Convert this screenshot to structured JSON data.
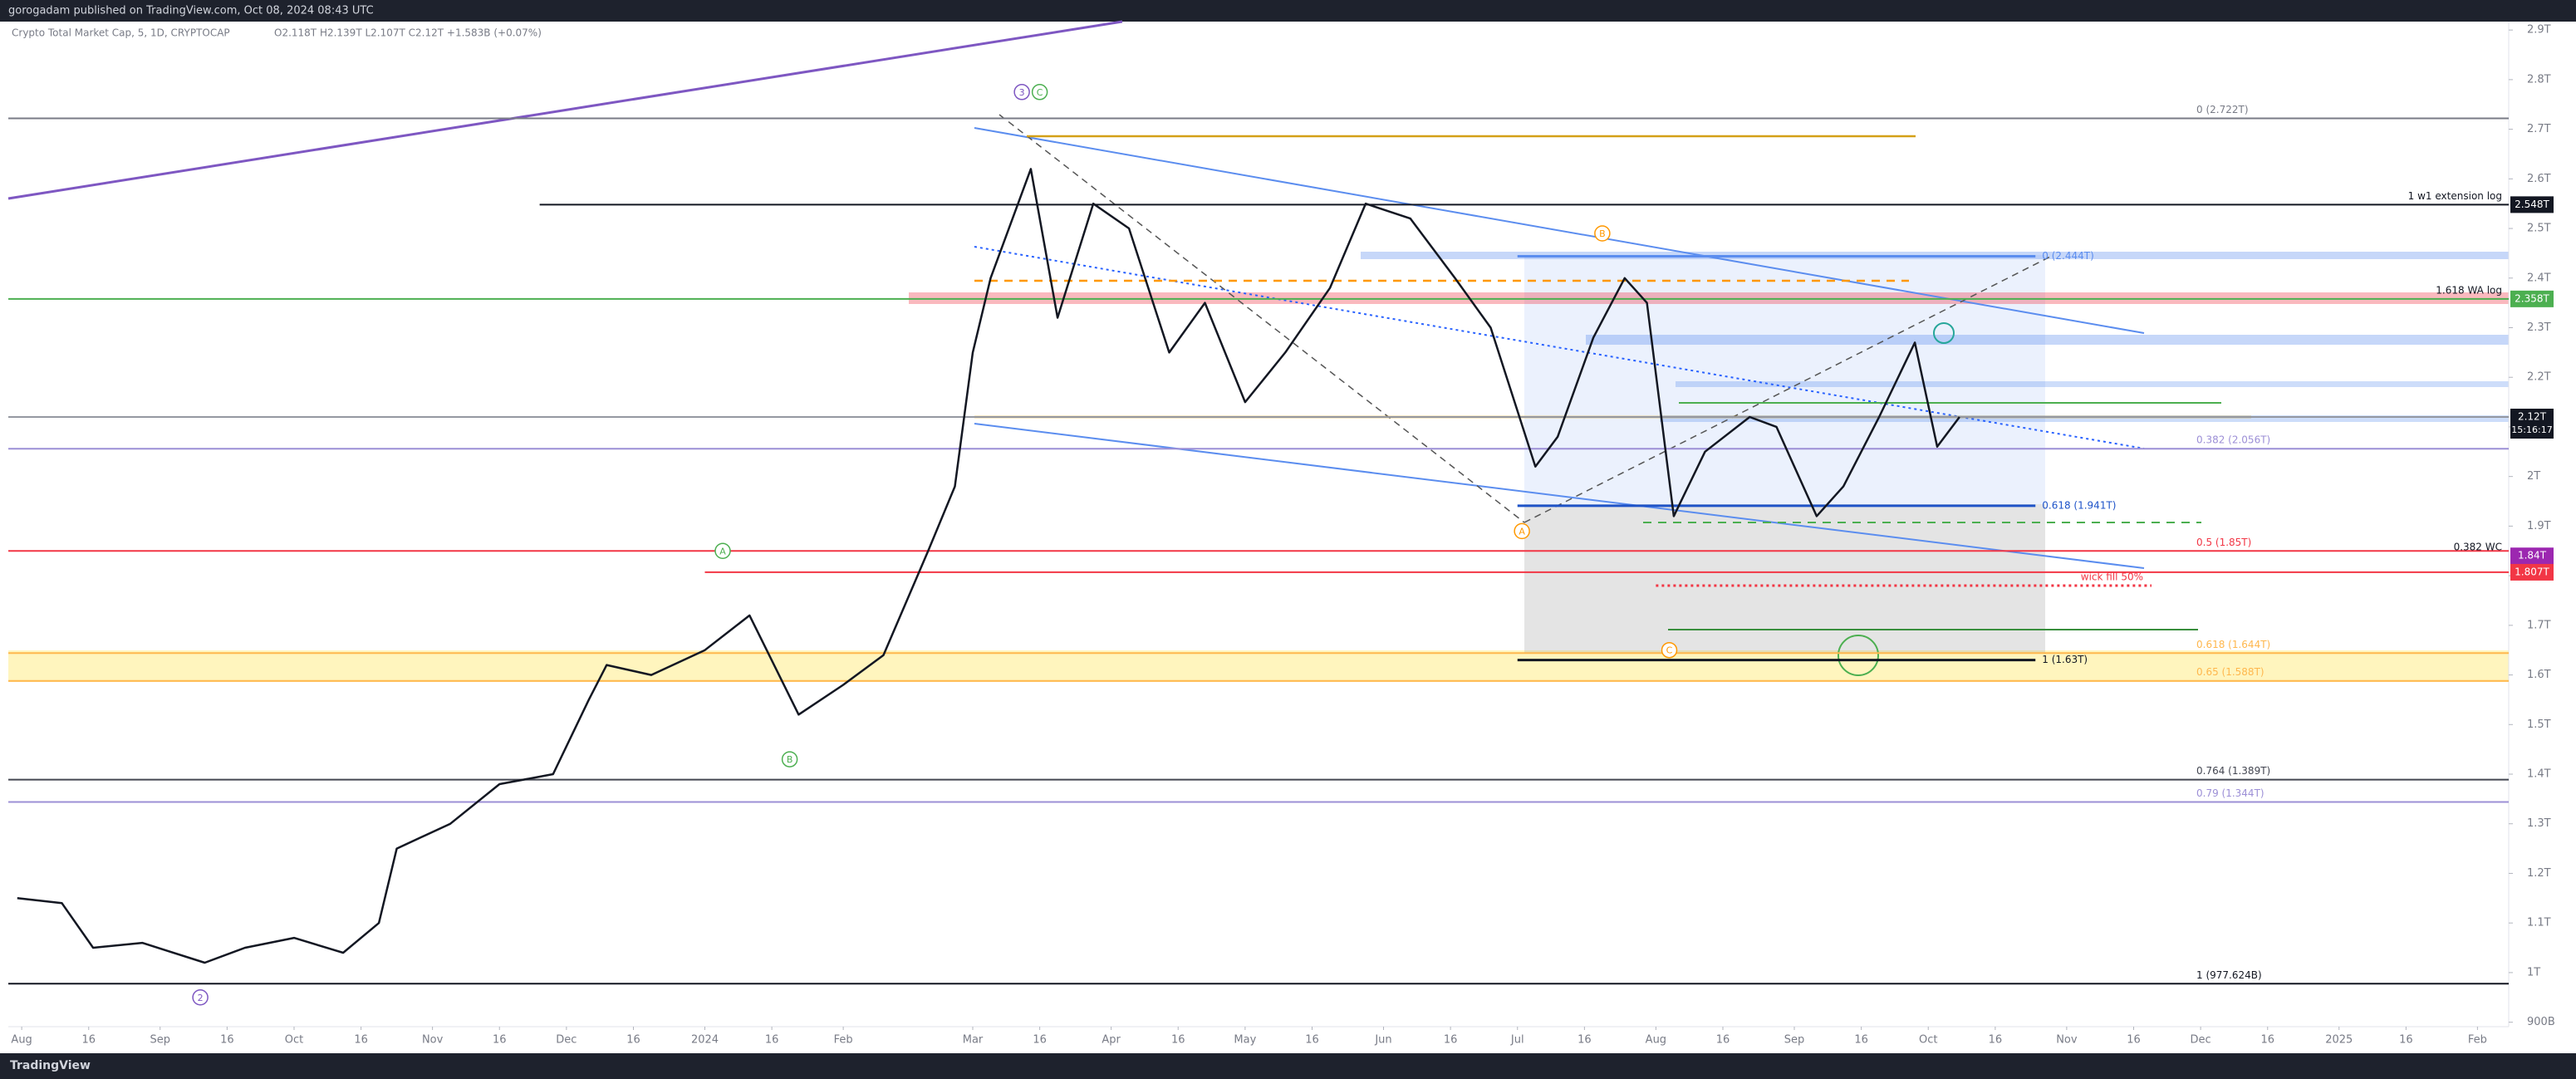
{
  "header": {
    "publisher": "gorogadam published on TradingView.com, Oct 08, 2024 08:43 UTC",
    "footer": "TradingView"
  },
  "chart_data": {
    "type": "line",
    "title": "Crypto Total Market Cap, 5, 1D, CRYPTOCAP",
    "quote": "O2.118T H2.139T L2.107T C2.12T +1.583B (+0.07%)",
    "color": "#131722",
    "x": [
      "2023-07-31",
      "2023-08-10",
      "2023-08-17",
      "2023-08-28",
      "2023-09-11",
      "2023-09-20",
      "2023-10-01",
      "2023-10-12",
      "2023-10-20",
      "2023-10-24",
      "2023-11-05",
      "2023-11-16",
      "2023-11-28",
      "2023-12-06",
      "2023-12-10",
      "2023-12-20",
      "2024-01-01",
      "2024-01-11",
      "2024-01-22",
      "2024-02-01",
      "2024-02-10",
      "2024-02-20",
      "2024-02-26",
      "2024-03-01",
      "2024-03-05",
      "2024-03-14",
      "2024-03-20",
      "2024-03-28",
      "2024-04-05",
      "2024-04-14",
      "2024-04-22",
      "2024-05-01",
      "2024-05-10",
      "2024-05-20",
      "2024-05-28",
      "2024-06-07",
      "2024-06-17",
      "2024-06-25",
      "2024-07-05",
      "2024-07-10",
      "2024-07-18",
      "2024-07-25",
      "2024-07-30",
      "2024-08-05",
      "2024-08-12",
      "2024-08-22",
      "2024-08-28",
      "2024-09-06",
      "2024-09-12",
      "2024-09-20",
      "2024-09-28",
      "2024-10-03",
      "2024-10-08"
    ],
    "values": [
      1.15,
      1.14,
      1.05,
      1.06,
      1.02,
      1.05,
      1.07,
      1.04,
      1.1,
      1.25,
      1.3,
      1.38,
      1.4,
      1.55,
      1.62,
      1.6,
      1.65,
      1.72,
      1.52,
      1.58,
      1.64,
      1.85,
      1.98,
      2.25,
      2.4,
      2.62,
      2.32,
      2.55,
      2.5,
      2.25,
      2.35,
      2.15,
      2.25,
      2.38,
      2.55,
      2.52,
      2.4,
      2.3,
      2.02,
      2.08,
      2.28,
      2.4,
      2.35,
      1.92,
      2.05,
      2.12,
      2.1,
      1.92,
      1.98,
      2.12,
      2.27,
      2.06,
      2.12
    ],
    "xlim": [
      "2023-07-29",
      "2025-02-08"
    ],
    "ylim": [
      0.891,
      2.917
    ],
    "xticks": [
      {
        "value": "2023-08-01",
        "label": "Aug"
      },
      {
        "value": "2023-08-16",
        "label": "16"
      },
      {
        "value": "2023-09-01",
        "label": "Sep"
      },
      {
        "value": "2023-09-16",
        "label": "16"
      },
      {
        "value": "2023-10-01",
        "label": "Oct"
      },
      {
        "value": "2023-10-16",
        "label": "16"
      },
      {
        "value": "2023-11-01",
        "label": "Nov"
      },
      {
        "value": "2023-11-16",
        "label": "16"
      },
      {
        "value": "2023-12-01",
        "label": "Dec"
      },
      {
        "value": "2023-12-16",
        "label": "16"
      },
      {
        "value": "2024-01-01",
        "label": "2024"
      },
      {
        "value": "2024-01-16",
        "label": "16"
      },
      {
        "value": "2024-02-01",
        "label": "Feb"
      },
      {
        "value": "2024-03-01",
        "label": "Mar"
      },
      {
        "value": "2024-03-16",
        "label": "16"
      },
      {
        "value": "2024-04-01",
        "label": "Apr"
      },
      {
        "value": "2024-04-16",
        "label": "16"
      },
      {
        "value": "2024-05-01",
        "label": "May"
      },
      {
        "value": "2024-05-16",
        "label": "16"
      },
      {
        "value": "2024-06-01",
        "label": "Jun"
      },
      {
        "value": "2024-06-16",
        "label": "16"
      },
      {
        "value": "2024-07-01",
        "label": "Jul"
      },
      {
        "value": "2024-07-16",
        "label": "16"
      },
      {
        "value": "2024-08-01",
        "label": "Aug"
      },
      {
        "value": "2024-08-16",
        "label": "16"
      },
      {
        "value": "2024-09-01",
        "label": "Sep"
      },
      {
        "value": "2024-09-16",
        "label": "16"
      },
      {
        "value": "2024-10-01",
        "label": "Oct"
      },
      {
        "value": "2024-10-16",
        "label": "16"
      },
      {
        "value": "2024-11-01",
        "label": "Nov"
      },
      {
        "value": "2024-11-16",
        "label": "16"
      },
      {
        "value": "2024-12-01",
        "label": "Dec"
      },
      {
        "value": "2024-12-16",
        "label": "16"
      },
      {
        "value": "2025-01-01",
        "label": "2025"
      },
      {
        "value": "2025-01-16",
        "label": "16"
      },
      {
        "value": "2025-02-01",
        "label": "Feb"
      }
    ],
    "yticks": [
      {
        "value": 2.9,
        "label": "2.9T"
      },
      {
        "value": 2.8,
        "label": "2.8T"
      },
      {
        "value": 2.7,
        "label": "2.7T"
      },
      {
        "value": 2.6,
        "label": "2.6T"
      },
      {
        "value": 2.5,
        "label": "2.5T"
      },
      {
        "value": 2.4,
        "label": "2.4T"
      },
      {
        "value": 2.3,
        "label": "2.3T"
      },
      {
        "value": 2.2,
        "label": "2.2T"
      },
      {
        "value": 2.1,
        "label": "2.1T"
      },
      {
        "value": 2,
        "label": "2T"
      },
      {
        "value": 1.9,
        "label": "1.9T"
      },
      {
        "value": 1.8,
        "label": "1.8T"
      },
      {
        "value": 1.7,
        "label": "1.7T"
      },
      {
        "value": 1.6,
        "label": "1.6T"
      },
      {
        "value": 1.5,
        "label": "1.5T"
      },
      {
        "value": 1.4,
        "label": "1.4T"
      },
      {
        "value": 1.3,
        "label": "1.3T"
      },
      {
        "value": 1.2,
        "label": "1.2T"
      },
      {
        "value": 1.1,
        "label": "1.1T"
      },
      {
        "value": 1,
        "label": "1T"
      },
      {
        "value": 0.9,
        "label": "900B"
      }
    ],
    "levels": [
      {
        "value": 2.722,
        "color": "#787b86",
        "label": "0 (2.722T)"
      },
      {
        "value": 2.548,
        "color": "#131722",
        "start": "2023-11-25",
        "label": "1 w1 extension log",
        "label_pos": "right",
        "tag": "2.548T",
        "tag_color": "#131722"
      },
      {
        "value": 2.358,
        "color": "#4caf50",
        "label": "1.618 WA log",
        "label_pos": "right",
        "tag": "2.358T",
        "tag_color": "#4caf50"
      },
      {
        "value": 2.12,
        "color": "#9598a1",
        "tag": "2.12T",
        "tag_sub": "15:16:17",
        "tag_color": "#131722"
      },
      {
        "value": 2.056,
        "color": "#9c8fd6",
        "label": "0.382 (2.056T)"
      },
      {
        "value": 1.85,
        "color": "#f23645",
        "label": "0.5 (1.85T)"
      },
      {
        "value": 1.84,
        "label": "0.382 WC",
        "label_pos": "right",
        "tag": "1.84T",
        "tag_color": "#9c27b0"
      },
      {
        "value": 1.807,
        "color": "#f23645",
        "start": "2024-01-01",
        "tag": "1.807T",
        "tag_color": "#f23645"
      },
      {
        "value": 1.644,
        "color": "#ffb74d",
        "label": "0.618 (1.644T)"
      },
      {
        "value": 1.588,
        "color": "#ffb74d",
        "label": "0.65 (1.588T)"
      },
      {
        "value": 1.389,
        "color": "#434651",
        "label": "0.764 (1.389T)"
      },
      {
        "value": 1.344,
        "color": "#9c8fd6",
        "label": "0.79 (1.344T)"
      },
      {
        "value": 0.977624,
        "color": "#131722",
        "label": "1 (977.624B)"
      },
      {
        "value": 2.444,
        "color": "#5b8def",
        "start": "2024-07-01",
        "end": "2024-10-25",
        "label": "0 (2.444T)"
      },
      {
        "value": 1.941,
        "color": "#1e53c8",
        "start": "2024-07-01",
        "end": "2024-10-25",
        "label": "0.618 (1.941T)"
      },
      {
        "value": 1.63,
        "color": "#131722",
        "start": "2024-07-01",
        "end": "2024-10-25",
        "label": "1 (1.63T)"
      },
      {
        "value": 1.78,
        "color": "#f23645",
        "start": "2024-08-01",
        "end": "2024-11-20",
        "dash": true,
        "label": "wick fill 50%",
        "label_pos": "above"
      }
    ],
    "wave_labels": [
      {
        "label": "2",
        "x": "2023-09-10",
        "y": 0.95,
        "color": "#7e57c2"
      },
      {
        "label": "A",
        "x": "2024-01-05",
        "y": 1.85,
        "color": "#4caf50"
      },
      {
        "label": "B",
        "x": "2024-01-20",
        "y": 1.43,
        "color": "#4caf50"
      },
      {
        "label": "3",
        "x": "2024-03-12",
        "y": 2.775,
        "color": "#7e57c2"
      },
      {
        "label": "C",
        "x": "2024-03-16",
        "y": 2.775,
        "color": "#4caf50"
      },
      {
        "label": "A",
        "x": "2024-07-02",
        "y": 1.89,
        "color": "#ff9800"
      },
      {
        "label": "B",
        "x": "2024-07-20",
        "y": 2.49,
        "color": "#ff9800"
      },
      {
        "label": "C",
        "x": "2024-08-04",
        "y": 1.65,
        "color": "#ff9800"
      }
    ]
  }
}
